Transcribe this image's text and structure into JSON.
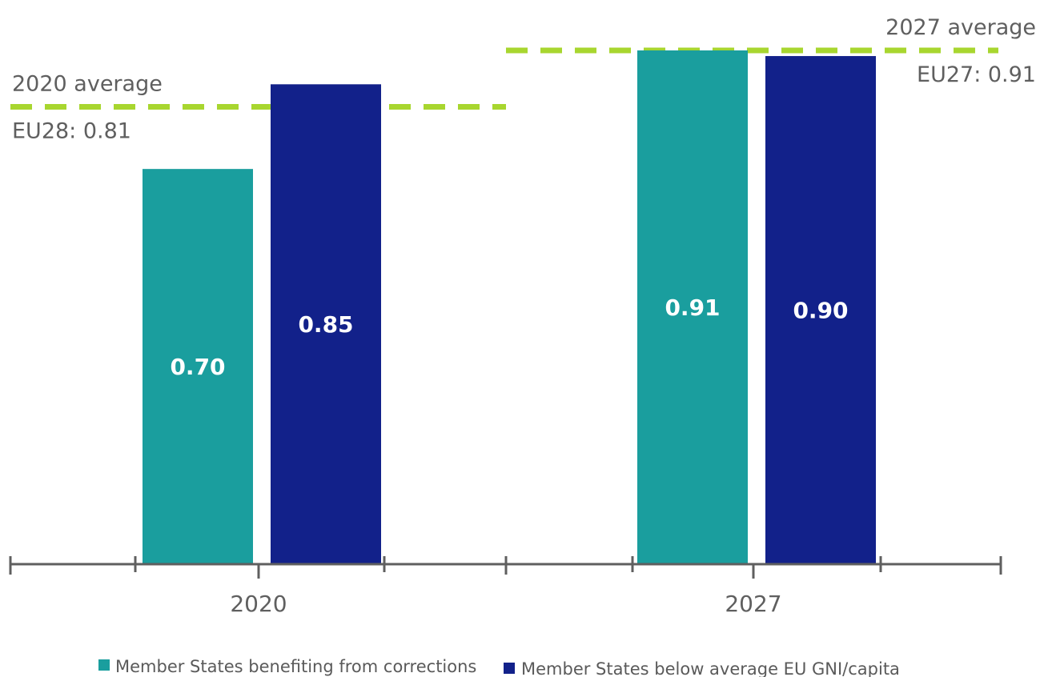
{
  "chart_data": {
    "type": "bar",
    "title": "",
    "xlabel": "",
    "ylabel": "",
    "ylim": [
      0,
      0.91
    ],
    "categories": [
      "2020",
      "2027"
    ],
    "series": [
      {
        "name": "Member States benefiting from corrections",
        "color": "#1a9e9e",
        "values": [
          0.7,
          0.91
        ],
        "value_labels": [
          "0.70",
          "0.91"
        ]
      },
      {
        "name": "Member States below average EU GNI/capita",
        "color": "#12218a",
        "values": [
          0.85,
          0.9
        ],
        "value_labels": [
          "0.85",
          "0.90"
        ]
      }
    ],
    "averages": [
      {
        "category": "2020",
        "value": 0.81,
        "title": "2020 average",
        "label": "EU28: 0.81"
      },
      {
        "category": "2027",
        "value": 0.91,
        "title": "2027 average",
        "label": "EU27: 0.91"
      }
    ],
    "average_line_color": "#a8d62f",
    "axis_color": "#5f5f5f",
    "grid": false,
    "legend_position": "bottom"
  }
}
